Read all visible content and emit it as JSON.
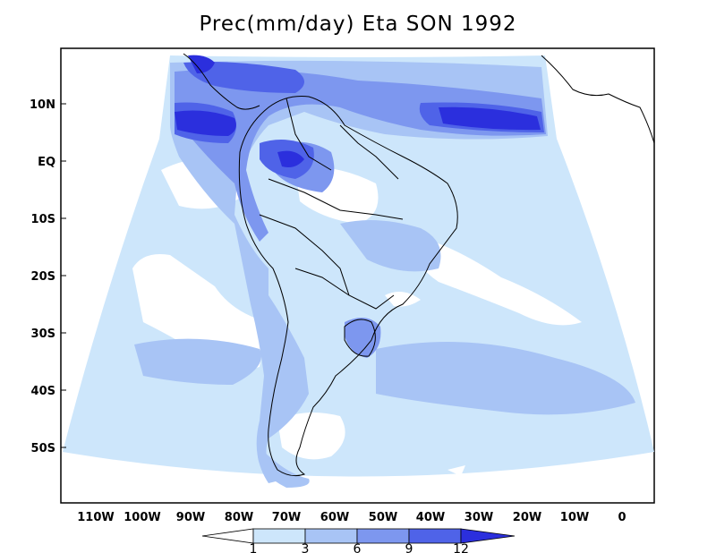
{
  "title": "Prec(mm/day) Eta SON 1992",
  "lat_labels": [
    "10N",
    "EQ",
    "10S",
    "20S",
    "30S",
    "40S",
    "50S"
  ],
  "lon_labels": [
    "110W",
    "100W",
    "90W",
    "80W",
    "70W",
    "60W",
    "50W",
    "40W",
    "30W",
    "20W",
    "10W",
    "0"
  ],
  "colorbar": {
    "labels": [
      "1",
      "3",
      "6",
      "9",
      "12"
    ],
    "colors": [
      "#ffffff",
      "#cde6fb",
      "#a8c4f5",
      "#7d97ef",
      "#4f63e8",
      "#2b2fdd"
    ]
  }
}
